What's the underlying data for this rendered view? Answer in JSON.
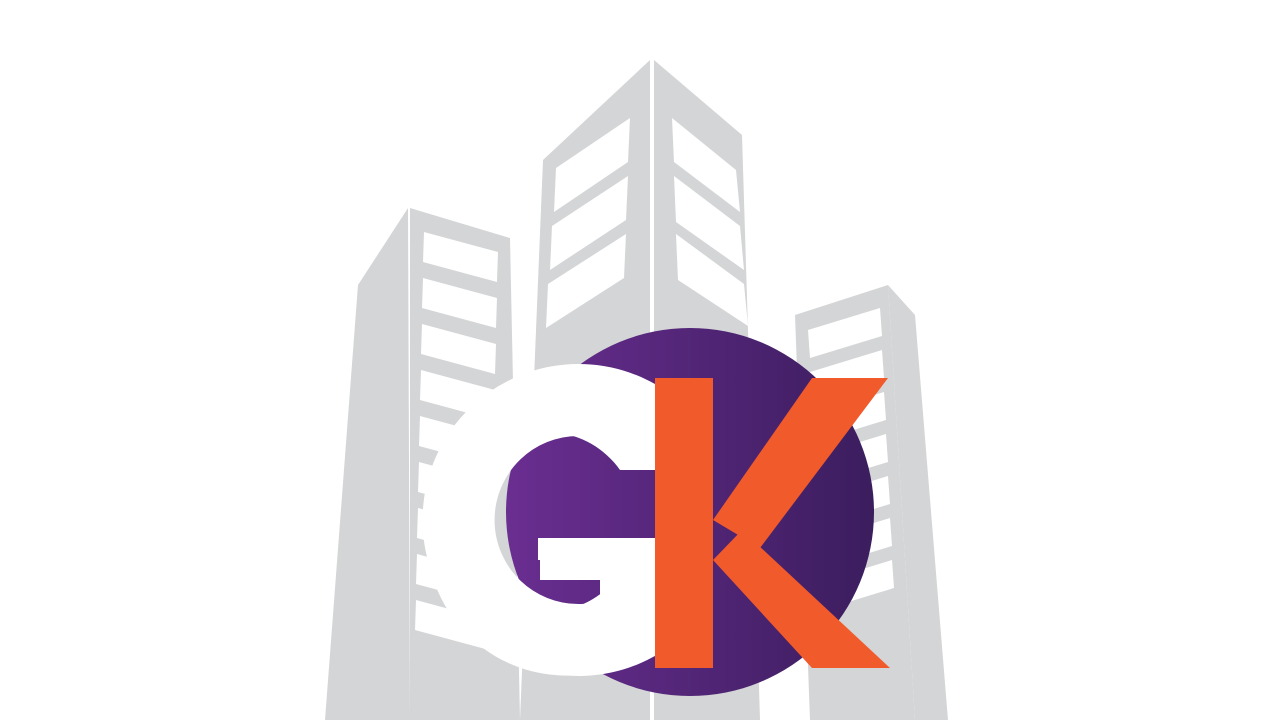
{
  "logo": {
    "letters": "GK",
    "letter_g": "G",
    "letter_k": "K",
    "colors": {
      "background": "#ffffff",
      "building": "#d4d5d7",
      "circle_light": "#6a2e91",
      "circle_dark": "#3b1d5e",
      "g_letter": "#ffffff",
      "k_letter": "#f15a2b"
    },
    "icons": {
      "buildings": "city-buildings-icon",
      "circle": "purple-circle-emblem"
    }
  }
}
